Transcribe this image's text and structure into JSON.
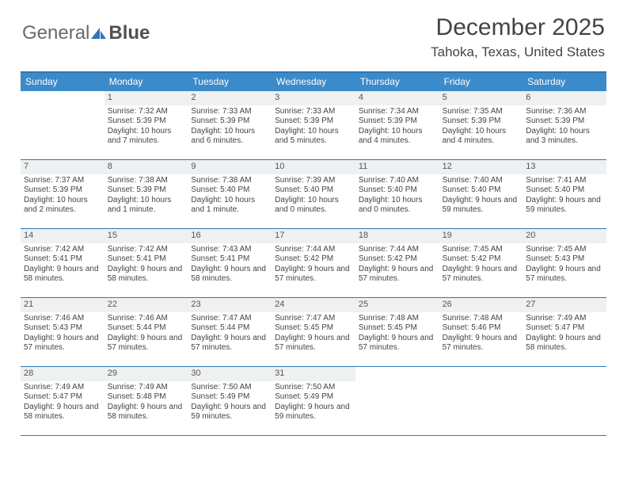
{
  "brand": {
    "part1": "General",
    "part2": "Blue"
  },
  "title": {
    "month": "December 2025",
    "location": "Tahoka, Texas, United States"
  },
  "colors": {
    "header_bg": "#3b8aca",
    "border": "#2e77b5",
    "daynum_bg": "#eef0f1",
    "text": "#444444",
    "logo_gray": "#6a6a6a"
  },
  "daysOfWeek": [
    "Sunday",
    "Monday",
    "Tuesday",
    "Wednesday",
    "Thursday",
    "Friday",
    "Saturday"
  ],
  "weeks": [
    [
      {
        "n": "",
        "sr": "",
        "ss": "",
        "dl": ""
      },
      {
        "n": "1",
        "sr": "Sunrise: 7:32 AM",
        "ss": "Sunset: 5:39 PM",
        "dl": "Daylight: 10 hours and 7 minutes."
      },
      {
        "n": "2",
        "sr": "Sunrise: 7:33 AM",
        "ss": "Sunset: 5:39 PM",
        "dl": "Daylight: 10 hours and 6 minutes."
      },
      {
        "n": "3",
        "sr": "Sunrise: 7:33 AM",
        "ss": "Sunset: 5:39 PM",
        "dl": "Daylight: 10 hours and 5 minutes."
      },
      {
        "n": "4",
        "sr": "Sunrise: 7:34 AM",
        "ss": "Sunset: 5:39 PM",
        "dl": "Daylight: 10 hours and 4 minutes."
      },
      {
        "n": "5",
        "sr": "Sunrise: 7:35 AM",
        "ss": "Sunset: 5:39 PM",
        "dl": "Daylight: 10 hours and 4 minutes."
      },
      {
        "n": "6",
        "sr": "Sunrise: 7:36 AM",
        "ss": "Sunset: 5:39 PM",
        "dl": "Daylight: 10 hours and 3 minutes."
      }
    ],
    [
      {
        "n": "7",
        "sr": "Sunrise: 7:37 AM",
        "ss": "Sunset: 5:39 PM",
        "dl": "Daylight: 10 hours and 2 minutes."
      },
      {
        "n": "8",
        "sr": "Sunrise: 7:38 AM",
        "ss": "Sunset: 5:39 PM",
        "dl": "Daylight: 10 hours and 1 minute."
      },
      {
        "n": "9",
        "sr": "Sunrise: 7:38 AM",
        "ss": "Sunset: 5:40 PM",
        "dl": "Daylight: 10 hours and 1 minute."
      },
      {
        "n": "10",
        "sr": "Sunrise: 7:39 AM",
        "ss": "Sunset: 5:40 PM",
        "dl": "Daylight: 10 hours and 0 minutes."
      },
      {
        "n": "11",
        "sr": "Sunrise: 7:40 AM",
        "ss": "Sunset: 5:40 PM",
        "dl": "Daylight: 10 hours and 0 minutes."
      },
      {
        "n": "12",
        "sr": "Sunrise: 7:40 AM",
        "ss": "Sunset: 5:40 PM",
        "dl": "Daylight: 9 hours and 59 minutes."
      },
      {
        "n": "13",
        "sr": "Sunrise: 7:41 AM",
        "ss": "Sunset: 5:40 PM",
        "dl": "Daylight: 9 hours and 59 minutes."
      }
    ],
    [
      {
        "n": "14",
        "sr": "Sunrise: 7:42 AM",
        "ss": "Sunset: 5:41 PM",
        "dl": "Daylight: 9 hours and 58 minutes."
      },
      {
        "n": "15",
        "sr": "Sunrise: 7:42 AM",
        "ss": "Sunset: 5:41 PM",
        "dl": "Daylight: 9 hours and 58 minutes."
      },
      {
        "n": "16",
        "sr": "Sunrise: 7:43 AM",
        "ss": "Sunset: 5:41 PM",
        "dl": "Daylight: 9 hours and 58 minutes."
      },
      {
        "n": "17",
        "sr": "Sunrise: 7:44 AM",
        "ss": "Sunset: 5:42 PM",
        "dl": "Daylight: 9 hours and 57 minutes."
      },
      {
        "n": "18",
        "sr": "Sunrise: 7:44 AM",
        "ss": "Sunset: 5:42 PM",
        "dl": "Daylight: 9 hours and 57 minutes."
      },
      {
        "n": "19",
        "sr": "Sunrise: 7:45 AM",
        "ss": "Sunset: 5:42 PM",
        "dl": "Daylight: 9 hours and 57 minutes."
      },
      {
        "n": "20",
        "sr": "Sunrise: 7:45 AM",
        "ss": "Sunset: 5:43 PM",
        "dl": "Daylight: 9 hours and 57 minutes."
      }
    ],
    [
      {
        "n": "21",
        "sr": "Sunrise: 7:46 AM",
        "ss": "Sunset: 5:43 PM",
        "dl": "Daylight: 9 hours and 57 minutes."
      },
      {
        "n": "22",
        "sr": "Sunrise: 7:46 AM",
        "ss": "Sunset: 5:44 PM",
        "dl": "Daylight: 9 hours and 57 minutes."
      },
      {
        "n": "23",
        "sr": "Sunrise: 7:47 AM",
        "ss": "Sunset: 5:44 PM",
        "dl": "Daylight: 9 hours and 57 minutes."
      },
      {
        "n": "24",
        "sr": "Sunrise: 7:47 AM",
        "ss": "Sunset: 5:45 PM",
        "dl": "Daylight: 9 hours and 57 minutes."
      },
      {
        "n": "25",
        "sr": "Sunrise: 7:48 AM",
        "ss": "Sunset: 5:45 PM",
        "dl": "Daylight: 9 hours and 57 minutes."
      },
      {
        "n": "26",
        "sr": "Sunrise: 7:48 AM",
        "ss": "Sunset: 5:46 PM",
        "dl": "Daylight: 9 hours and 57 minutes."
      },
      {
        "n": "27",
        "sr": "Sunrise: 7:49 AM",
        "ss": "Sunset: 5:47 PM",
        "dl": "Daylight: 9 hours and 58 minutes."
      }
    ],
    [
      {
        "n": "28",
        "sr": "Sunrise: 7:49 AM",
        "ss": "Sunset: 5:47 PM",
        "dl": "Daylight: 9 hours and 58 minutes."
      },
      {
        "n": "29",
        "sr": "Sunrise: 7:49 AM",
        "ss": "Sunset: 5:48 PM",
        "dl": "Daylight: 9 hours and 58 minutes."
      },
      {
        "n": "30",
        "sr": "Sunrise: 7:50 AM",
        "ss": "Sunset: 5:49 PM",
        "dl": "Daylight: 9 hours and 59 minutes."
      },
      {
        "n": "31",
        "sr": "Sunrise: 7:50 AM",
        "ss": "Sunset: 5:49 PM",
        "dl": "Daylight: 9 hours and 59 minutes."
      },
      {
        "n": "",
        "sr": "",
        "ss": "",
        "dl": ""
      },
      {
        "n": "",
        "sr": "",
        "ss": "",
        "dl": ""
      },
      {
        "n": "",
        "sr": "",
        "ss": "",
        "dl": ""
      }
    ]
  ]
}
